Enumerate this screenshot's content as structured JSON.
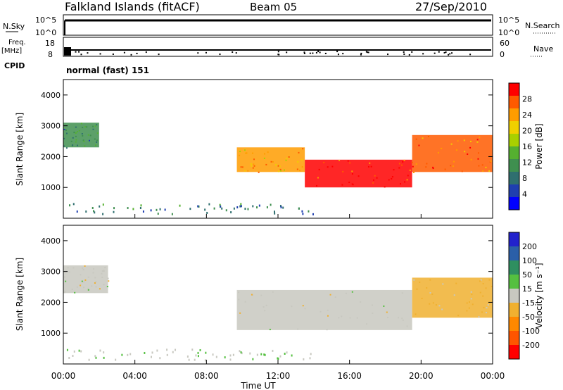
{
  "header": {
    "station": "Falkland Islands (fitACF)",
    "beam": "Beam 05",
    "date": "27/Sep/2010"
  },
  "strips": {
    "nsky": {
      "label": "N.Sky",
      "ticks": [
        "10^5",
        "10^0"
      ],
      "right_ticks": [
        "10^5",
        "10^0"
      ],
      "right_label": "N.Search"
    },
    "freq": {
      "label_line1": "Freq.",
      "label_line2": "[MHz]",
      "ticks": [
        "18",
        "8"
      ],
      "right_ticks": [
        "60",
        "0"
      ],
      "right_label": "Nave"
    },
    "cpid": {
      "label": "CPID",
      "value": "normal (fast) 151"
    }
  },
  "x_axis": {
    "ticks": [
      "00:00",
      "04:00",
      "08:00",
      "12:00",
      "16:00",
      "20:00",
      "00:00"
    ],
    "label": "Time UT"
  },
  "y_axis": {
    "label": "Slant Range [km]",
    "ticks": [
      "4000",
      "3000",
      "2000",
      "1000"
    ]
  },
  "colorbars": {
    "power": {
      "label": "Power [dB]",
      "ticks": [
        "28",
        "24",
        "20",
        "16",
        "12",
        "8",
        "4"
      ],
      "colors": [
        "#0000ff",
        "#1f3fb0",
        "#2f6f6f",
        "#3f8f4f",
        "#55b030",
        "#a8d000",
        "#f0d000",
        "#ff9c00",
        "#ff5a00",
        "#ff0000"
      ]
    },
    "velocity": {
      "label": "Velocity [m s⁻¹]",
      "ticks": [
        "200",
        "100",
        "50",
        "15",
        "-15",
        "-50",
        "-100",
        "-200"
      ],
      "colors": [
        "#2222cc",
        "#2b5fa8",
        "#2f8f60",
        "#55c040",
        "#c8c8c0",
        "#f0b030",
        "#ff8800",
        "#ff5500",
        "#ff0000"
      ]
    }
  },
  "chart_data": [
    {
      "type": "heatmap",
      "title": "Power",
      "xlabel": "Time UT",
      "ylabel": "Slant Range [km]",
      "x": [
        "00:00",
        "04:00",
        "08:00",
        "12:00",
        "16:00",
        "20:00",
        "00:00"
      ],
      "xlim_hours": [
        0,
        24
      ],
      "ylim": [
        0,
        4500
      ],
      "zlabel": "Power [dB]",
      "zlim": [
        0,
        30
      ],
      "regions": [
        {
          "t_start": 0.0,
          "t_end": 2.0,
          "range_low": 2300,
          "range_high": 3100,
          "power_db": 10
        },
        {
          "t_start": 9.7,
          "t_end": 13.5,
          "range_low": 1500,
          "range_high": 2300,
          "power_db": 22
        },
        {
          "t_start": 13.5,
          "t_end": 19.5,
          "range_low": 1000,
          "range_high": 1900,
          "power_db": 27
        },
        {
          "t_start": 19.5,
          "t_end": 24.0,
          "range_low": 1500,
          "range_high": 2700,
          "power_db": 24
        }
      ]
    },
    {
      "type": "heatmap",
      "title": "Velocity",
      "xlabel": "Time UT",
      "ylabel": "Slant Range [km]",
      "x": [
        "00:00",
        "04:00",
        "08:00",
        "12:00",
        "16:00",
        "20:00",
        "00:00"
      ],
      "xlim_hours": [
        0,
        24
      ],
      "ylim": [
        0,
        4500
      ],
      "zlabel": "Velocity [m s⁻¹]",
      "zlim": [
        -200,
        200
      ],
      "regions": [
        {
          "t_start": 0.0,
          "t_end": 2.5,
          "range_low": 2300,
          "range_high": 3200,
          "velocity": 0
        },
        {
          "t_start": 9.7,
          "t_end": 19.5,
          "range_low": 1100,
          "range_high": 2400,
          "velocity": 0
        },
        {
          "t_start": 19.5,
          "t_end": 24.0,
          "range_low": 1500,
          "range_high": 2800,
          "velocity": -30
        }
      ]
    }
  ]
}
